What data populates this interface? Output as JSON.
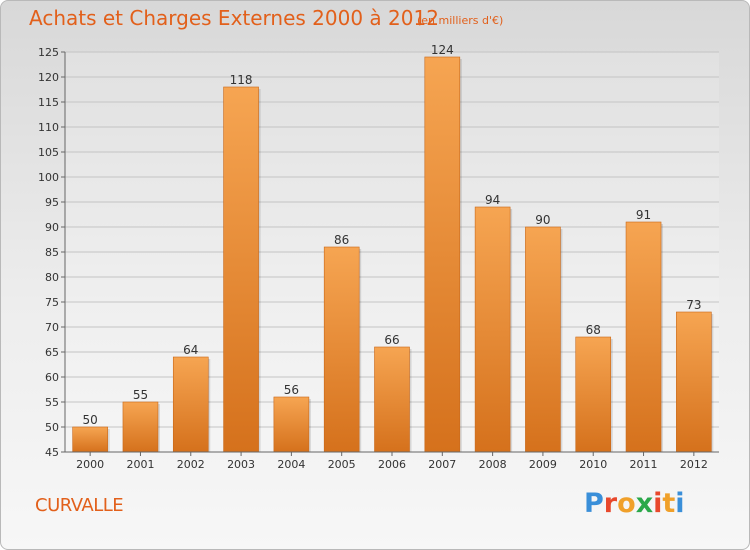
{
  "title": "Achats et Charges Externes 2000 à 2012",
  "subtitle": "(en milliers d'€)",
  "location": "CURVALLE",
  "logo": {
    "letters": [
      "P",
      "r",
      "o",
      "x",
      "i",
      "t",
      "i"
    ],
    "colors": [
      "#3a8fd9",
      "#e8482c",
      "#f0a02a",
      "#2aa84a",
      "#e8482c",
      "#f0a02a",
      "#3a8fd9"
    ]
  },
  "colors": {
    "bar": "#f29a45",
    "bar_dark": "#d9741f",
    "text_accent": "#e2601b"
  },
  "chart_data": {
    "type": "bar",
    "categories": [
      "2000",
      "2001",
      "2002",
      "2003",
      "2004",
      "2005",
      "2006",
      "2007",
      "2008",
      "2009",
      "2010",
      "2011",
      "2012"
    ],
    "values": [
      50,
      55,
      64,
      118,
      56,
      86,
      66,
      124,
      94,
      90,
      68,
      91,
      73
    ],
    "ylim": [
      45,
      125
    ],
    "yticks": [
      45,
      50,
      55,
      60,
      65,
      70,
      75,
      80,
      85,
      90,
      95,
      100,
      105,
      110,
      115,
      120,
      125
    ],
    "grid": true,
    "xlabel": "",
    "ylabel": ""
  }
}
